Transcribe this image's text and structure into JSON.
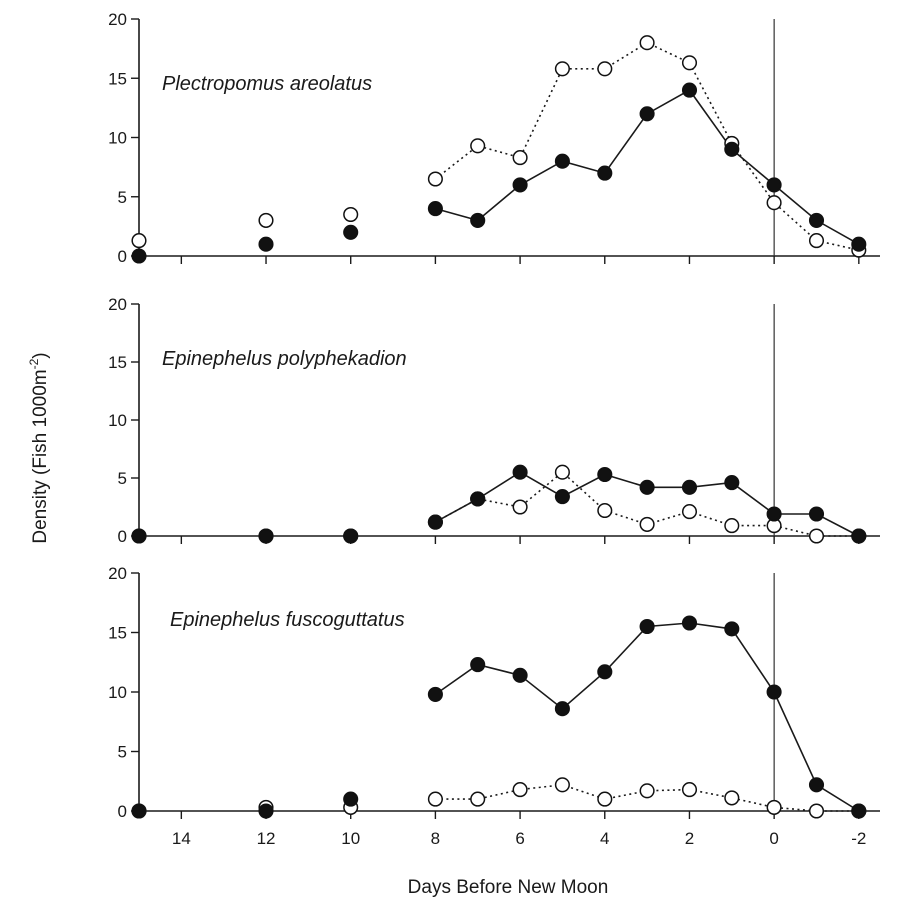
{
  "chart_data": {
    "type": "line",
    "xlabel": "Days Before New Moon",
    "ylabel": "Density (Fish 1000m",
    "ylabel_superscript": "-2",
    "ylabel_close": ")",
    "xlim": [
      15,
      -2.5
    ],
    "ylim": [
      0,
      20
    ],
    "x_ticks": [
      14,
      12,
      10,
      8,
      6,
      4,
      2,
      0,
      -2
    ],
    "x_tick_labels": [
      "14",
      "12",
      "10",
      "8",
      "6",
      "4",
      "2",
      "0",
      "-2"
    ],
    "y_ticks": [
      0,
      5,
      10,
      15,
      20
    ],
    "y_tick_labels": [
      "0",
      "5",
      "10",
      "15",
      "20"
    ],
    "reference_line_x": 0,
    "panels": [
      {
        "title": "Plectropomus areolatus",
        "series": [
          {
            "marker": "filled",
            "line": "solid",
            "points": [
              [
                15,
                0
              ],
              [
                12,
                1
              ],
              [
                10,
                2
              ],
              [
                8,
                4
              ],
              [
                7,
                3
              ],
              [
                6,
                6
              ],
              [
                5,
                8
              ],
              [
                4,
                7
              ],
              [
                3,
                12
              ],
              [
                2,
                14
              ],
              [
                1,
                9
              ],
              [
                0,
                6
              ],
              [
                -1,
                3
              ],
              [
                -2,
                1
              ]
            ],
            "connected_from_x": 8
          },
          {
            "marker": "open",
            "line": "dotted",
            "points": [
              [
                15,
                1.3
              ],
              [
                12,
                3
              ],
              [
                10,
                3.5
              ],
              [
                8,
                6.5
              ],
              [
                7,
                9.3
              ],
              [
                6,
                8.3
              ],
              [
                5,
                15.8
              ],
              [
                4,
                15.8
              ],
              [
                3,
                18
              ],
              [
                2,
                16.3
              ],
              [
                1,
                9.5
              ],
              [
                0,
                4.5
              ],
              [
                -1,
                1.3
              ],
              [
                -2,
                0.5
              ]
            ],
            "connected_from_x": 8
          }
        ]
      },
      {
        "title": "Epinephelus polyphekadion",
        "series": [
          {
            "marker": "filled",
            "line": "solid",
            "points": [
              [
                15,
                0
              ],
              [
                12,
                0
              ],
              [
                10,
                0
              ],
              [
                8,
                1.2
              ],
              [
                7,
                3.2
              ],
              [
                6,
                5.5
              ],
              [
                5,
                3.4
              ],
              [
                4,
                5.3
              ],
              [
                3,
                4.2
              ],
              [
                2,
                4.2
              ],
              [
                1,
                4.6
              ],
              [
                0,
                1.9
              ],
              [
                -1,
                1.9
              ],
              [
                -2,
                0
              ]
            ],
            "connected_from_x": 8
          },
          {
            "marker": "open",
            "line": "dotted",
            "points": [
              [
                15,
                0
              ],
              [
                12,
                0
              ],
              [
                10,
                0
              ],
              [
                8,
                1.2
              ],
              [
                7,
                3.2
              ],
              [
                6,
                2.5
              ],
              [
                5,
                5.5
              ],
              [
                4,
                2.2
              ],
              [
                3,
                1
              ],
              [
                2,
                2.1
              ],
              [
                1,
                0.9
              ],
              [
                0,
                0.9
              ],
              [
                -1,
                0
              ],
              [
                -2,
                0
              ]
            ],
            "connected_from_x": 8
          }
        ]
      },
      {
        "title": "Epinephelus fuscoguttatus",
        "series": [
          {
            "marker": "filled",
            "line": "solid",
            "points": [
              [
                15,
                0
              ],
              [
                12,
                0
              ],
              [
                10,
                1
              ],
              [
                8,
                9.8
              ],
              [
                7,
                12.3
              ],
              [
                6,
                11.4
              ],
              [
                5,
                8.6
              ],
              [
                4,
                11.7
              ],
              [
                3,
                15.5
              ],
              [
                2,
                15.8
              ],
              [
                1,
                15.3
              ],
              [
                0,
                10
              ],
              [
                -1,
                2.2
              ],
              [
                -2,
                0
              ]
            ],
            "connected_from_x": 8
          },
          {
            "marker": "open",
            "line": "dotted",
            "points": [
              [
                15,
                0
              ],
              [
                12,
                0.3
              ],
              [
                10,
                0.3
              ],
              [
                8,
                1
              ],
              [
                7,
                1
              ],
              [
                6,
                1.8
              ],
              [
                5,
                2.2
              ],
              [
                4,
                1
              ],
              [
                3,
                1.7
              ],
              [
                2,
                1.8
              ],
              [
                1,
                1.1
              ],
              [
                0,
                0.3
              ],
              [
                -1,
                0
              ],
              [
                -2,
                0
              ]
            ],
            "connected_from_x": 8
          }
        ]
      }
    ]
  }
}
